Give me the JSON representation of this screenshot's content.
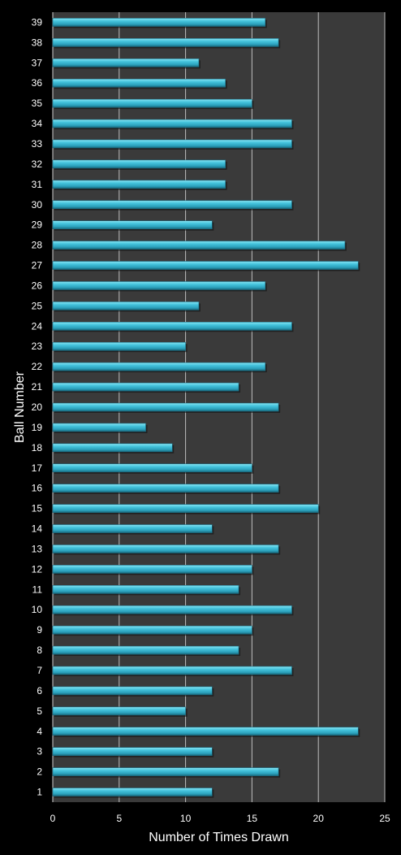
{
  "colors": {
    "background": "#000000",
    "plot_area": "#3a3a3a",
    "gridline": "#bdbdbd",
    "bar_light": "#7fe0f0",
    "bar_main": "#35b7d1",
    "bar_dark": "#1c6f86",
    "text": "#ffffff"
  },
  "chart_data": {
    "type": "bar",
    "orientation": "horizontal",
    "title": "",
    "xlabel": "Number of Times Drawn",
    "ylabel": "Ball Number",
    "xlim": [
      0,
      25
    ],
    "xticks": [
      0,
      5,
      10,
      15,
      20,
      25
    ],
    "grid": "vertical",
    "legend": "none",
    "categories": [
      "1",
      "2",
      "3",
      "4",
      "5",
      "6",
      "7",
      "8",
      "9",
      "10",
      "11",
      "12",
      "13",
      "14",
      "15",
      "16",
      "17",
      "18",
      "19",
      "20",
      "21",
      "22",
      "23",
      "24",
      "25",
      "26",
      "27",
      "28",
      "29",
      "30",
      "31",
      "32",
      "33",
      "34",
      "35",
      "36",
      "37",
      "38",
      "39"
    ],
    "values": [
      12,
      17,
      12,
      23,
      10,
      12,
      18,
      14,
      15,
      18,
      14,
      15,
      17,
      12,
      20,
      17,
      15,
      9,
      7,
      17,
      14,
      16,
      10,
      18,
      11,
      16,
      23,
      22,
      12,
      18,
      13,
      13,
      18,
      18,
      15,
      13,
      11,
      17,
      16
    ]
  }
}
